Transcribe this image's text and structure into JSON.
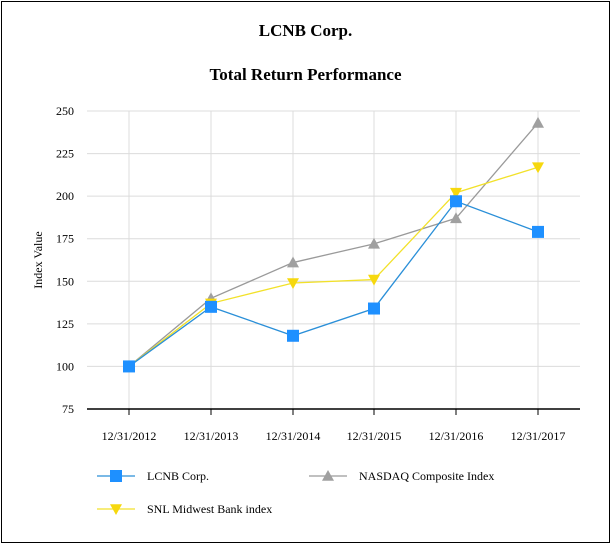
{
  "chart_data": {
    "type": "line",
    "title": "LCNB Corp.",
    "subtitle": "Total Return Performance",
    "xlabel": "",
    "ylabel": "Index Value",
    "ylim": [
      75,
      250
    ],
    "yticks": [
      75,
      100,
      125,
      150,
      175,
      200,
      225,
      250
    ],
    "categories": [
      "12/31/2012",
      "12/31/2013",
      "12/31/2014",
      "12/31/2015",
      "12/31/2016",
      "12/31/2017"
    ],
    "grid": true,
    "legend_position": "bottom",
    "series": [
      {
        "name": "LCNB Corp.",
        "values": [
          100,
          135,
          118,
          134,
          197,
          179
        ],
        "color": "#2a8fd8",
        "marker_color": "#1e90ff",
        "marker": "square"
      },
      {
        "name": "NASDAQ Composite Index",
        "values": [
          100,
          140,
          161,
          172,
          187,
          243
        ],
        "color": "#9a9a9a",
        "marker_color": "#a0a0a0",
        "marker": "triangle-up"
      },
      {
        "name": "SNL Midwest Bank index",
        "values": [
          100,
          137,
          149,
          151,
          202,
          217
        ],
        "color": "#f2e12a",
        "marker_color": "#f6d80e",
        "marker": "triangle-down"
      }
    ]
  }
}
